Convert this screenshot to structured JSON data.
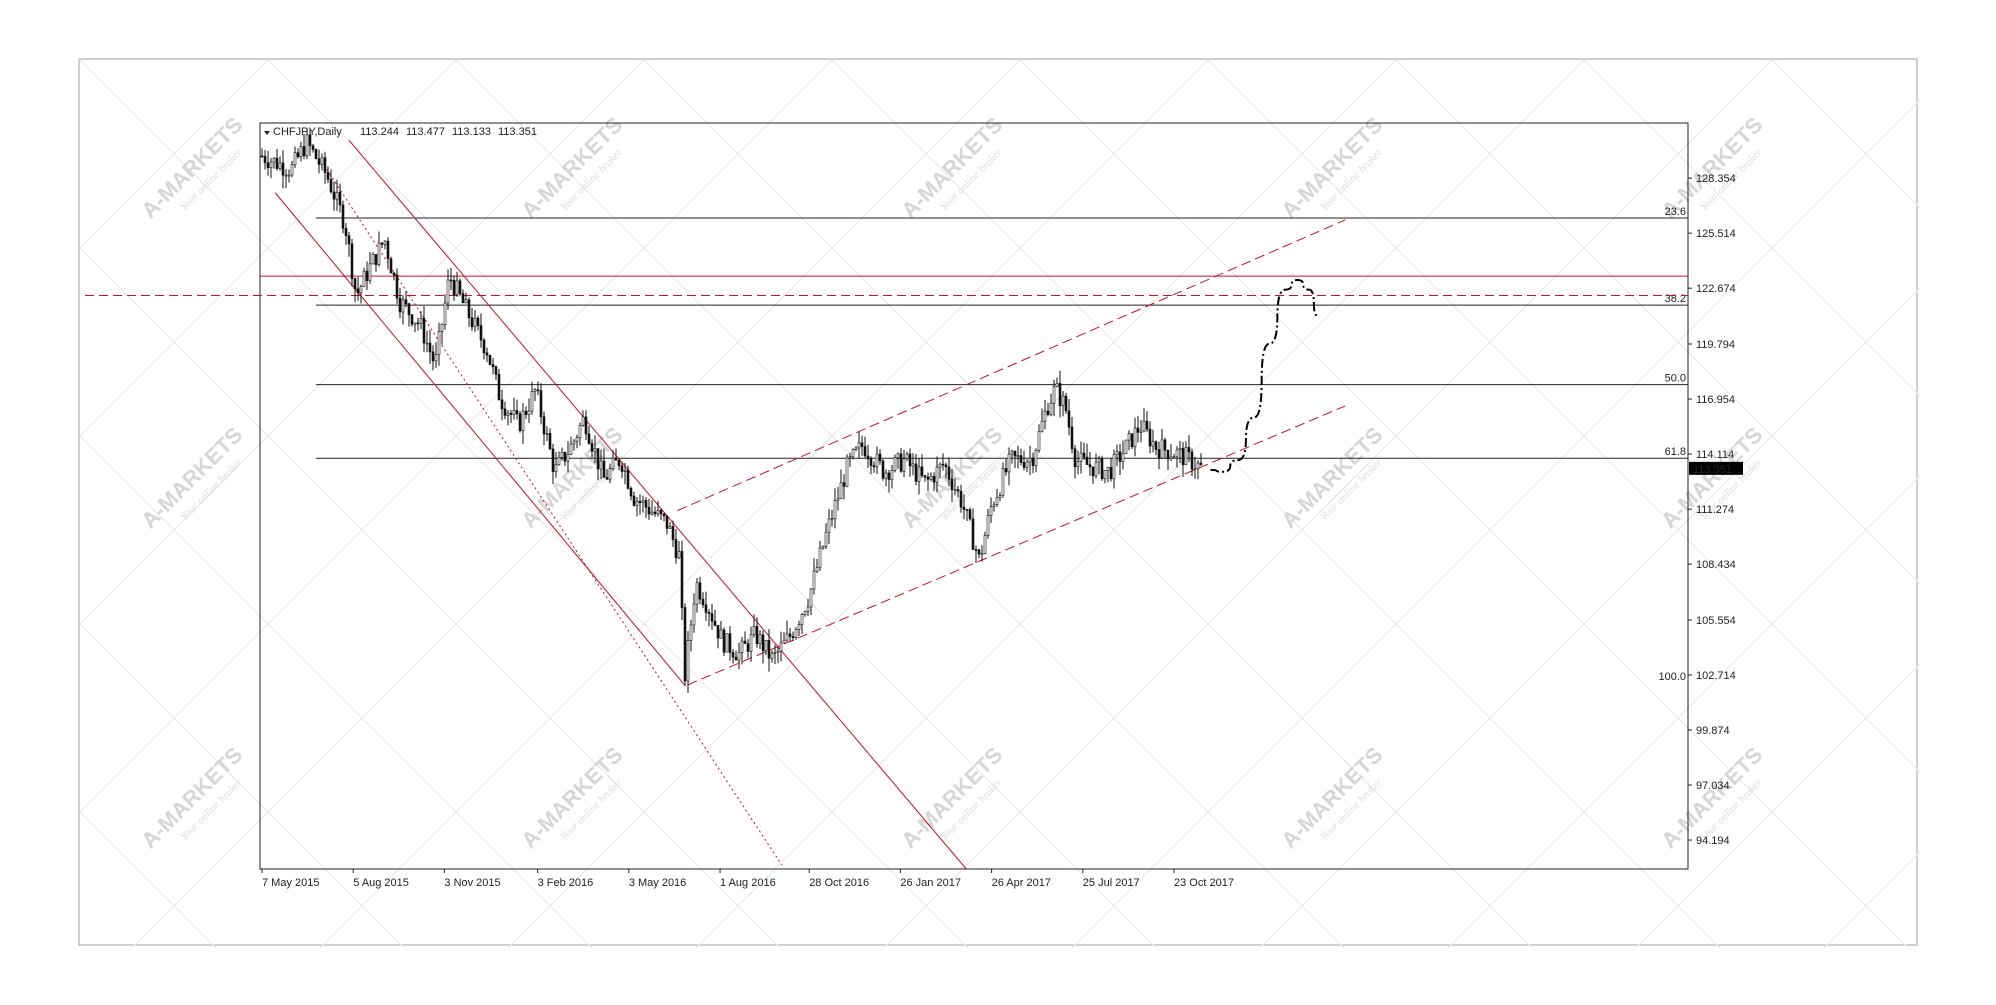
{
  "chart_data": {
    "type": "candlestick",
    "symbol_header": "CHFJPY,Daily",
    "ohlc": {
      "open": "113.244",
      "high": "113.477",
      "low": "113.133",
      "close": "113.351"
    },
    "current_price_label": "113.351",
    "y_axis": {
      "ylim": [
        92.7,
        131.2
      ],
      "ticks": [
        {
          "value": 128.354,
          "label": "128.354"
        },
        {
          "value": 125.514,
          "label": "125.514"
        },
        {
          "value": 122.674,
          "label": "122.674"
        },
        {
          "value": 119.794,
          "label": "119.794"
        },
        {
          "value": 116.954,
          "label": "116.954"
        },
        {
          "value": 114.114,
          "label": "114.114"
        },
        {
          "value": 111.274,
          "label": "111.274"
        },
        {
          "value": 108.434,
          "label": "108.434"
        },
        {
          "value": 105.554,
          "label": "105.554"
        },
        {
          "value": 102.714,
          "label": "102.714"
        },
        {
          "value": 99.874,
          "label": "99.874"
        },
        {
          "value": 97.034,
          "label": "97.034"
        },
        {
          "value": 94.194,
          "label": "94.194"
        }
      ]
    },
    "x_axis": {
      "ticks": [
        {
          "date": "2015-05-07",
          "label": "7 May 2015"
        },
        {
          "date": "2015-08-05",
          "label": "5 Aug 2015"
        },
        {
          "date": "2015-11-03",
          "label": "3 Nov 2015"
        },
        {
          "date": "2016-02-03",
          "label": "3 Feb 2016"
        },
        {
          "date": "2016-05-03",
          "label": "3 May 2016"
        },
        {
          "date": "2016-08-01",
          "label": "1 Aug 2016"
        },
        {
          "date": "2016-10-28",
          "label": "28 Oct 2016"
        },
        {
          "date": "2017-01-26",
          "label": "26 Jan 2017"
        },
        {
          "date": "2017-04-26",
          "label": "26 Apr 2017"
        },
        {
          "date": "2017-07-25",
          "label": "25 Jul 2017"
        },
        {
          "date": "2017-10-23",
          "label": "23 Oct 2017"
        }
      ]
    },
    "price_path": [
      {
        "date": "2015-05-07",
        "price": 129.5
      },
      {
        "date": "2015-06-05",
        "price": 128.8
      },
      {
        "date": "2015-06-20",
        "price": 130.2
      },
      {
        "date": "2015-07-10",
        "price": 128.5
      },
      {
        "date": "2015-07-28",
        "price": 126.0
      },
      {
        "date": "2015-08-08",
        "price": 122.3
      },
      {
        "date": "2015-08-22",
        "price": 123.8
      },
      {
        "date": "2015-09-05",
        "price": 125.2
      },
      {
        "date": "2015-09-20",
        "price": 122.0
      },
      {
        "date": "2015-10-10",
        "price": 120.8
      },
      {
        "date": "2015-10-25",
        "price": 118.7
      },
      {
        "date": "2015-11-08",
        "price": 123.3
      },
      {
        "date": "2015-11-25",
        "price": 121.5
      },
      {
        "date": "2015-12-15",
        "price": 119.5
      },
      {
        "date": "2015-12-28",
        "price": 117.0
      },
      {
        "date": "2016-01-15",
        "price": 115.6
      },
      {
        "date": "2016-02-01",
        "price": 117.4
      },
      {
        "date": "2016-02-20",
        "price": 113.2
      },
      {
        "date": "2016-03-08",
        "price": 114.6
      },
      {
        "date": "2016-03-20",
        "price": 116.0
      },
      {
        "date": "2016-04-08",
        "price": 112.8
      },
      {
        "date": "2016-04-25",
        "price": 113.9
      },
      {
        "date": "2016-05-08",
        "price": 111.9
      },
      {
        "date": "2016-05-25",
        "price": 111.2
      },
      {
        "date": "2016-06-10",
        "price": 110.5
      },
      {
        "date": "2016-06-22",
        "price": 108.8
      },
      {
        "date": "2016-06-27",
        "price": 102.5
      },
      {
        "date": "2016-07-08",
        "price": 107.5
      },
      {
        "date": "2016-07-20",
        "price": 106.3
      },
      {
        "date": "2016-08-03",
        "price": 104.5
      },
      {
        "date": "2016-08-20",
        "price": 103.8
      },
      {
        "date": "2016-09-05",
        "price": 104.8
      },
      {
        "date": "2016-09-22",
        "price": 103.5
      },
      {
        "date": "2016-10-10",
        "price": 104.8
      },
      {
        "date": "2016-10-28",
        "price": 106.8
      },
      {
        "date": "2016-11-15",
        "price": 110.2
      },
      {
        "date": "2016-12-05",
        "price": 113.5
      },
      {
        "date": "2016-12-20",
        "price": 114.6
      },
      {
        "date": "2017-01-10",
        "price": 113.2
      },
      {
        "date": "2017-01-30",
        "price": 113.8
      },
      {
        "date": "2017-02-20",
        "price": 112.6
      },
      {
        "date": "2017-03-10",
        "price": 113.6
      },
      {
        "date": "2017-03-28",
        "price": 111.6
      },
      {
        "date": "2017-04-14",
        "price": 108.6
      },
      {
        "date": "2017-04-26",
        "price": 111.5
      },
      {
        "date": "2017-05-15",
        "price": 113.8
      },
      {
        "date": "2017-06-05",
        "price": 113.9
      },
      {
        "date": "2017-06-20",
        "price": 116.6
      },
      {
        "date": "2017-06-28",
        "price": 117.5
      },
      {
        "date": "2017-07-08",
        "price": 116.5
      },
      {
        "date": "2017-07-18",
        "price": 113.8
      },
      {
        "date": "2017-08-01",
        "price": 113.5
      },
      {
        "date": "2017-08-20",
        "price": 113.2
      },
      {
        "date": "2017-09-05",
        "price": 114.4
      },
      {
        "date": "2017-09-20",
        "price": 115.6
      },
      {
        "date": "2017-10-05",
        "price": 114.5
      },
      {
        "date": "2017-10-23",
        "price": 114.2
      },
      {
        "date": "2017-11-05",
        "price": 113.9
      },
      {
        "date": "2017-11-20",
        "price": 113.35
      }
    ],
    "fibonacci_levels": [
      {
        "label": "23.6",
        "price": 126.3
      },
      {
        "label": "38.2",
        "price": 121.8
      },
      {
        "label": "50.0",
        "price": 117.7
      },
      {
        "label": "61.8",
        "price": 113.9
      },
      {
        "label": "100.0",
        "price": 102.3
      }
    ],
    "horizontal_levels_red": [
      {
        "style": "solid",
        "price": 123.3
      },
      {
        "style": "dashed",
        "price": 122.3
      }
    ],
    "channel_lines": [
      {
        "name": "down-channel-upper",
        "style": "solid",
        "from": {
          "date": "2015-08-01",
          "price": 130.3
        },
        "to": {
          "date": "2017-04-01",
          "price": 92.7
        }
      },
      {
        "name": "down-channel-lower",
        "style": "solid",
        "from": {
          "date": "2015-05-20",
          "price": 127.6
        },
        "to": {
          "date": "2016-06-27",
          "price": 102.2
        }
      },
      {
        "name": "down-channel-mid",
        "style": "dotted",
        "from": {
          "date": "2015-07-10",
          "price": 128.8
        },
        "to": {
          "date": "2016-10-01",
          "price": 92.9
        }
      },
      {
        "name": "up-channel-upper",
        "style": "dashed",
        "from": {
          "date": "2016-06-20",
          "price": 111.2
        },
        "to": {
          "date": "2018-04-10",
          "price": 126.2
        }
      },
      {
        "name": "up-channel-lower",
        "style": "dashed",
        "from": {
          "date": "2016-06-30",
          "price": 102.2
        },
        "to": {
          "date": "2018-04-10",
          "price": 116.6
        }
      }
    ],
    "forecast_path": [
      {
        "date": "2017-11-28",
        "price": 113.3
      },
      {
        "date": "2017-12-10",
        "price": 113.2
      },
      {
        "date": "2017-12-25",
        "price": 113.8
      },
      {
        "date": "2018-01-10",
        "price": 116.0
      },
      {
        "date": "2018-01-25",
        "price": 119.8
      },
      {
        "date": "2018-02-10",
        "price": 122.6
      },
      {
        "date": "2018-02-22",
        "price": 123.1
      },
      {
        "date": "2018-03-05",
        "price": 122.6
      },
      {
        "date": "2018-03-15",
        "price": 121.2
      }
    ],
    "grid": false,
    "colors": {
      "candles": "#111111",
      "fib_lines": "#222222",
      "red_levels": "#c8102e",
      "channel": "#c8102e",
      "forecast": "#000000",
      "price_tag_bg": "#000000",
      "price_tag_text": "#ffffff",
      "watermark": "#d6d6d6"
    }
  },
  "watermark": {
    "brand": "A-MARKETS",
    "tagline": "Your online broker"
  }
}
